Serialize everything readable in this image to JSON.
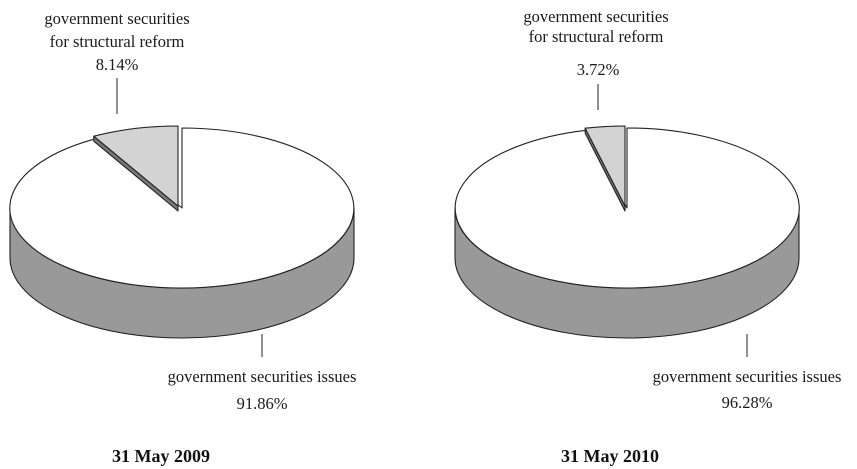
{
  "colors": {
    "main_top": "#ffffff",
    "main_side": "#999999",
    "slice_top": "#d3d3d3",
    "slice_side": "#777777",
    "outline": "#222222"
  },
  "chart_data": [
    {
      "type": "pie",
      "title": "31 May 2009",
      "slices": [
        {
          "label_lines": [
            "government securities issues"
          ],
          "value_text": "91.86%",
          "value": 91.86
        },
        {
          "label_lines": [
            "government securities",
            "for structural reform"
          ],
          "value_text": "8.14%",
          "value": 8.14
        }
      ]
    },
    {
      "type": "pie",
      "title": "31 May 2010",
      "slices": [
        {
          "label_lines": [
            "government securities issues"
          ],
          "value_text": "96.28%",
          "value": 96.28
        },
        {
          "label_lines": [
            "government securities",
            "for structural reform"
          ],
          "value_text": "3.72%",
          "value": 3.72
        }
      ]
    }
  ]
}
